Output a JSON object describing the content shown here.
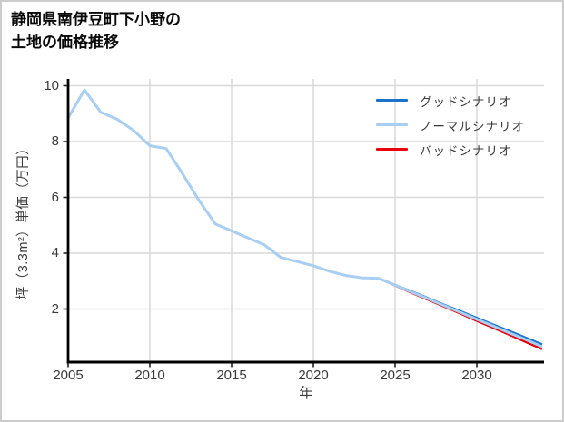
{
  "title": {
    "line1": "静岡県南伊豆町下小野の",
    "line2": "土地の価格推移"
  },
  "legend": {
    "items": [
      {
        "label": "グッドシナリオ",
        "color": "#1a73c8"
      },
      {
        "label": "ノーマルシナリオ",
        "color": "#a8cef2"
      },
      {
        "label": "バッドシナリオ",
        "color": "#e8000b"
      }
    ]
  },
  "axes": {
    "x_label": "年",
    "y_label": "坪（3.3m²）単価（万円）"
  },
  "colors": {
    "grid": "#d9d9d9",
    "axis": "#000000",
    "tick_text": "#3a3a3a"
  },
  "chart_data": {
    "type": "line",
    "title": "静岡県南伊豆町下小野の土地の価格推移",
    "xlabel": "年",
    "ylabel": "坪（3.3m²）単価（万円）",
    "xlim": [
      2005,
      2034
    ],
    "ylim": [
      0.1,
      10.25
    ],
    "x_ticks": [
      2005,
      2010,
      2015,
      2020,
      2025,
      2030
    ],
    "y_ticks": [
      2,
      4,
      6,
      8,
      10
    ],
    "grid": true,
    "legend_position": "top-right",
    "series": [
      {
        "name": "グッドシナリオ",
        "color": "#1a73c8",
        "line_width": 2.6,
        "x": [
          2024,
          2025,
          2026,
          2027,
          2028,
          2029,
          2030,
          2031,
          2032,
          2033,
          2034
        ],
        "values": [
          3.1,
          2.86,
          2.63,
          2.39,
          2.15,
          1.92,
          1.68,
          1.44,
          1.21,
          0.97,
          0.73
        ]
      },
      {
        "name": "バッドシナリオ",
        "color": "#e8000b",
        "line_width": 2.6,
        "x": [
          2024,
          2025,
          2026,
          2027,
          2028,
          2029,
          2030,
          2031,
          2032,
          2033,
          2034
        ],
        "values": [
          3.1,
          2.85,
          2.59,
          2.34,
          2.09,
          1.84,
          1.58,
          1.33,
          1.08,
          0.82,
          0.57
        ]
      },
      {
        "name": "ノーマルシナリオ",
        "color": "#a8cef2",
        "line_width": 3,
        "x": [
          2005,
          2006,
          2007,
          2008,
          2009,
          2010,
          2011,
          2012,
          2013,
          2014,
          2015,
          2016,
          2017,
          2018,
          2019,
          2020,
          2021,
          2022,
          2023,
          2024,
          2025,
          2026,
          2027,
          2028,
          2029,
          2030,
          2031,
          2032,
          2033,
          2034
        ],
        "values": [
          8.85,
          9.85,
          9.05,
          8.8,
          8.4,
          7.85,
          7.75,
          6.85,
          5.9,
          5.05,
          4.8,
          4.55,
          4.3,
          3.85,
          3.7,
          3.55,
          3.35,
          3.2,
          3.12,
          3.1,
          2.86,
          2.61,
          2.37,
          2.12,
          1.88,
          1.63,
          1.39,
          1.14,
          0.9,
          0.65
        ]
      }
    ]
  }
}
